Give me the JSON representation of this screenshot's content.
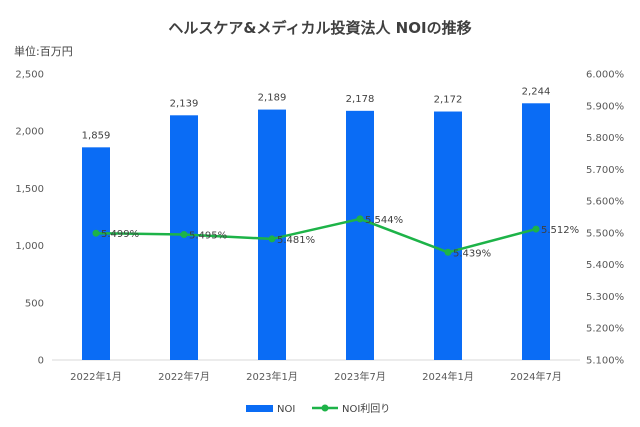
{
  "chart_data": {
    "type": "bar+line",
    "title": "ヘルスケア&メディカル投資法人  NOIの推移",
    "unit_label": "単位:百万円",
    "categories": [
      "2022年1月",
      "2022年7月",
      "2023年1月",
      "2023年7月",
      "2024年1月",
      "2024年7月"
    ],
    "series": [
      {
        "name": "NOI",
        "type": "bar",
        "axis": "left",
        "color": "#0a6cf5",
        "values": [
          1859,
          2139,
          2189,
          2178,
          2172,
          2244
        ],
        "labels": [
          "1,859",
          "2,139",
          "2,189",
          "2,178",
          "2,172",
          "2,244"
        ]
      },
      {
        "name": "NOI利回り",
        "type": "line",
        "axis": "right",
        "color": "#1db348",
        "values": [
          5.499,
          5.495,
          5.481,
          5.544,
          5.439,
          5.512
        ],
        "labels": [
          "5.499%",
          "5.495%",
          "5.481%",
          "5.544%",
          "5.439%",
          "5.512%"
        ]
      }
    ],
    "y_left": {
      "min": 0,
      "max": 2500,
      "ticks": [
        "0",
        "500",
        "1,000",
        "1,500",
        "2,000",
        "2,500"
      ]
    },
    "y_right": {
      "min": 5.1,
      "max": 6.0,
      "ticks": [
        "5.100%",
        "5.200%",
        "5.300%",
        "5.400%",
        "5.500%",
        "5.600%",
        "5.700%",
        "5.800%",
        "5.900%",
        "6.000%"
      ]
    },
    "grid": false,
    "legend_position": "bottom"
  }
}
